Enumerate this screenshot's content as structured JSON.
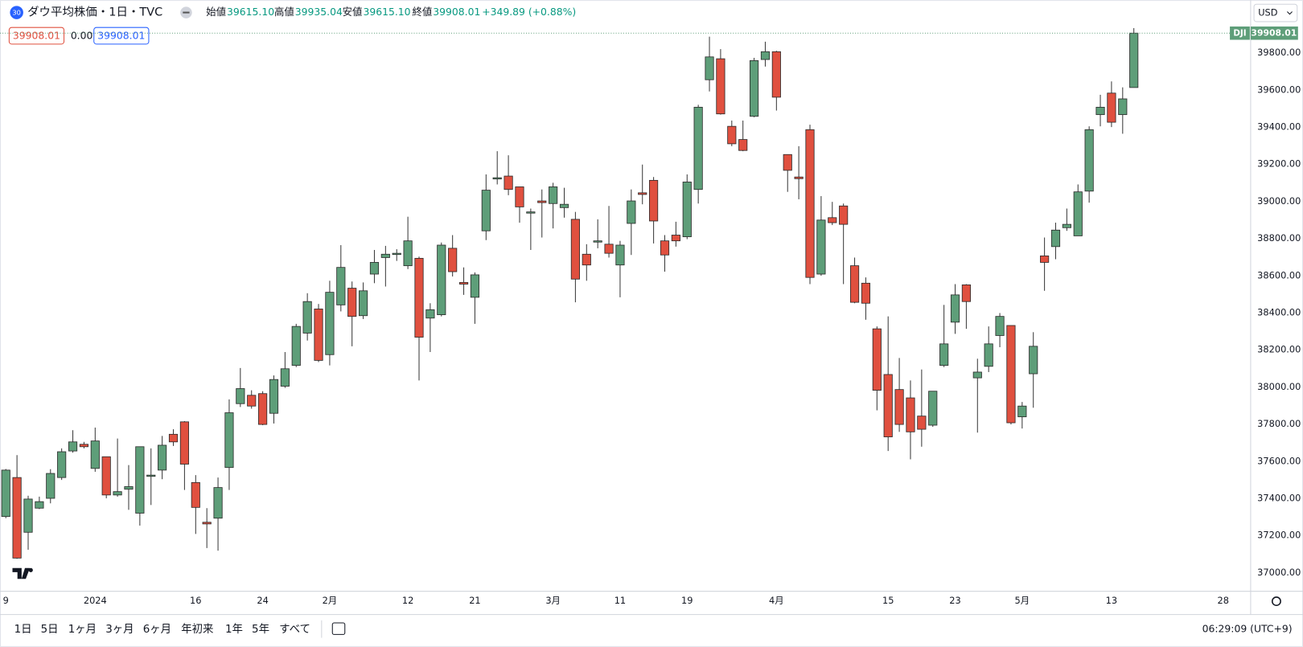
{
  "header": {
    "badge": "30",
    "ohlc": [
      {
        "label": "始値",
        "value": "39615.10"
      },
      {
        "label": "高値",
        "value": "39935.04"
      },
      {
        "label": "安値",
        "value": "39615.10"
      },
      {
        "label": "終値",
        "value": "39908.01"
      }
    ],
    "change": "+349.89 (+0.88%)",
    "bid": "39908.01",
    "spread": "0.00",
    "ask": "39908.01",
    "currency": "USD"
  },
  "chart_data": {
    "type": "candlestick",
    "title": "ダウ平均株価・1日・TVC",
    "symbol": "DJI",
    "last_label": "39908.01",
    "up_color": "#5e9e79",
    "down_color": "#e0503f",
    "categories": [
      "9",
      null,
      null,
      null,
      null,
      null,
      null,
      null,
      "2024",
      null,
      null,
      null,
      null,
      null,
      null,
      null,
      null,
      "16",
      null,
      null,
      null,
      null,
      null,
      "24",
      null,
      null,
      null,
      null,
      null,
      "2月",
      null,
      null,
      null,
      null,
      null,
      null,
      "12",
      null,
      null,
      null,
      null,
      null,
      "21",
      null,
      null,
      null,
      null,
      null,
      null,
      "3月",
      null,
      null,
      null,
      null,
      null,
      "11",
      null,
      null,
      null,
      null,
      null,
      "19",
      null,
      null,
      null,
      null,
      null,
      null,
      null,
      "4月",
      null,
      null,
      null,
      null,
      null,
      null,
      null,
      null,
      null,
      "15",
      null,
      null,
      null,
      null,
      null,
      "23",
      null,
      null,
      null,
      null,
      null,
      "5月",
      null,
      null,
      null,
      null,
      null,
      null,
      null,
      "13",
      null,
      null,
      null,
      null,
      null,
      null,
      null,
      null,
      null,
      "28",
      null,
      null
    ],
    "open": [
      37304,
      37514,
      37219,
      37349,
      37402,
      37514,
      37657,
      37693,
      37563,
      37626,
      37420,
      37451,
      37322,
      37523,
      37554,
      37747,
      37814,
      37487,
      37273,
      37295,
      37568,
      37912,
      37957,
      37966,
      37860,
      38006,
      38118,
      38292,
      38422,
      38176,
      38444,
      38534,
      38386,
      38610,
      38699,
      38717,
      38655,
      38695,
      38373,
      38391,
      38749,
      38565,
      38485,
      38843,
      39124,
      39138,
      39080,
      38941,
      39004,
      38990,
      38968,
      38905,
      38717,
      38784,
      38771,
      38659,
      38883,
      39048,
      39115,
      38789,
      38820,
      38811,
      39066,
      39657,
      39770,
      39406,
      39335,
      39460,
      39766,
      39808,
      39254,
      39133,
      39388,
      38610,
      38914,
      38977,
      38655,
      38561,
      38315,
      38069,
      37988,
      37943,
      37845,
      37796,
      38118,
      38351,
      38552,
      38051,
      38113,
      38279,
      38333,
      37841,
      38073,
      38708,
      38758,
      38860,
      38816,
      39057,
      39469,
      39585,
      39469,
      39615.1,
      null,
      null,
      null,
      null,
      null,
      null,
      null,
      null,
      null,
      null
    ],
    "high": [
      37560,
      37635,
      37416,
      37411,
      37559,
      37671,
      37769,
      37706,
      37783,
      37626,
      37724,
      37581,
      37680,
      37671,
      37738,
      37774,
      37818,
      37527,
      37349,
      37514,
      37935,
      38104,
      37984,
      37979,
      38064,
      38190,
      38342,
      38507,
      38449,
      38574,
      38766,
      38570,
      38565,
      38740,
      38762,
      38744,
      38919,
      38704,
      38453,
      38780,
      38820,
      38646,
      38619,
      39147,
      39272,
      39250,
      39080,
      38963,
      39066,
      39102,
      39075,
      38945,
      38771,
      38905,
      38977,
      38789,
      39066,
      39200,
      39133,
      38820,
      38892,
      39147,
      39522,
      39889,
      39822,
      39437,
      39437,
      39775,
      39862,
      39813,
      39254,
      39299,
      39415,
      39030,
      38999,
      38990,
      38699,
      38592,
      38328,
      38382,
      38158,
      38037,
      38096,
      37979,
      38444,
      38556,
      38556,
      38154,
      38328,
      38400,
      38333,
      37921,
      38297,
      38807,
      38887,
      38963,
      39093,
      39406,
      39576,
      39648,
      39616,
      39935.04,
      null,
      null,
      null,
      null,
      null,
      null,
      null,
      null,
      null,
      null
    ],
    "low": [
      37295,
      37076,
      37125,
      37344,
      37375,
      37501,
      37648,
      37671,
      37545,
      37402,
      37411,
      37340,
      37255,
      37366,
      37505,
      37684,
      37447,
      37210,
      37134,
      37120,
      37447,
      37894,
      37885,
      37796,
      37805,
      37997,
      38109,
      38252,
      38136,
      38118,
      38409,
      38221,
      38368,
      38561,
      38543,
      38681,
      38637,
      38037,
      38190,
      38382,
      38597,
      38498,
      38342,
      38793,
      39093,
      39035,
      38887,
      38740,
      38807,
      38856,
      38914,
      38458,
      38574,
      38749,
      38699,
      38485,
      38713,
      38986,
      38775,
      38623,
      38758,
      38798,
      38990,
      39594,
      39469,
      39299,
      39272,
      39455,
      39728,
      39491,
      39053,
      39013,
      38556,
      38601,
      38874,
      38556,
      38453,
      38364,
      37876,
      37657,
      37760,
      37612,
      37680,
      37787,
      38109,
      38288,
      38315,
      37756,
      38082,
      38216,
      37800,
      37778,
      37890,
      38520,
      38690,
      38843,
      38816,
      38995,
      39406,
      39402,
      39366,
      39615.1,
      null,
      null,
      null,
      null,
      null,
      null,
      null,
      null,
      null,
      null
    ],
    "close": [
      37554,
      37080,
      37398,
      37384,
      37536,
      37653,
      37706,
      37680,
      37711,
      37420,
      37438,
      37465,
      37680,
      37527,
      37688,
      37706,
      37586,
      37353,
      37264,
      37460,
      37863,
      37993,
      37899,
      37800,
      38042,
      38100,
      38328,
      38462,
      38145,
      38512,
      38646,
      38382,
      38520,
      38673,
      38717,
      38722,
      38789,
      38270,
      38418,
      38766,
      38623,
      38556,
      38606,
      39062,
      39129,
      39066,
      38972,
      38945,
      38995,
      39080,
      38986,
      38583,
      38659,
      38789,
      38722,
      38766,
      39004,
      39039,
      38896,
      38713,
      38789,
      39106,
      39509,
      39780,
      39473,
      39312,
      39276,
      39760,
      39808,
      39563,
      39169,
      39124,
      38592,
      38901,
      38887,
      38878,
      38458,
      38453,
      37984,
      37733,
      37800,
      37760,
      37774,
      37979,
      38234,
      38498,
      38462,
      38082,
      38234,
      38382,
      37809,
      37899,
      38221,
      38673,
      38847,
      38878,
      39053,
      39388,
      39509,
      39428,
      39554,
      39908.01,
      null,
      null,
      null,
      null,
      null,
      null,
      null,
      null,
      null,
      null
    ],
    "ylim": [
      36910,
      39952
    ],
    "yticks": [
      {
        "value": 37000,
        "label": "37000.00"
      },
      {
        "value": 37200,
        "label": "37200.00"
      },
      {
        "value": 37400,
        "label": "37400.00"
      },
      {
        "value": 37600,
        "label": "37600.00"
      },
      {
        "value": 37800,
        "label": "37800.00"
      },
      {
        "value": 38000,
        "label": "38000.00"
      },
      {
        "value": 38200,
        "label": "38200.00"
      },
      {
        "value": 38400,
        "label": "38400.00"
      },
      {
        "value": 38600,
        "label": "38600.00"
      },
      {
        "value": 38800,
        "label": "38800.00"
      },
      {
        "value": 39000,
        "label": "39000.00"
      },
      {
        "value": 39200,
        "label": "39200.00"
      },
      {
        "value": 39400,
        "label": "39400.00"
      },
      {
        "value": 39600,
        "label": "39600.00"
      },
      {
        "value": 39800,
        "label": "39800.00"
      }
    ],
    "grid": false
  },
  "toolbar": {
    "ranges": [
      "1日",
      "5日",
      "1ヶ月",
      "3ヶ月",
      "6ヶ月",
      "年初来",
      "1年",
      "5年",
      "すべて"
    ],
    "time": "06:29:09 (UTC+9)"
  }
}
